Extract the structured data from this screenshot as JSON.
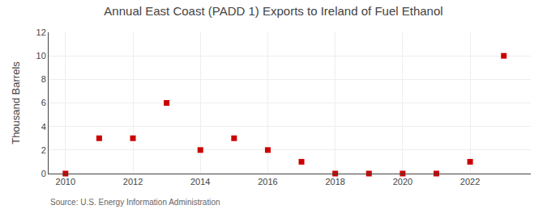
{
  "chart_data": {
    "type": "scatter",
    "title": "Annual East Coast (PADD 1) Exports to Ireland of Fuel Ethanol",
    "ylabel": "Thousand Barrels",
    "annotations": [
      "Source: U.S. Energy Information Administration"
    ],
    "x": [
      2010,
      2011,
      2012,
      2013,
      2014,
      2015,
      2016,
      2017,
      2018,
      2019,
      2020,
      2021,
      2022,
      2023
    ],
    "values": [
      0,
      3,
      3,
      6,
      2,
      3,
      2,
      1,
      0,
      0,
      0,
      0,
      1,
      10
    ],
    "color": "#cc0000",
    "marker": "square",
    "xlim": [
      2009.5,
      2023.8
    ],
    "ylim": [
      0,
      12
    ],
    "xticks": [
      2010,
      2012,
      2014,
      2016,
      2018,
      2020,
      2022
    ],
    "yticks": [
      0,
      2,
      4,
      6,
      8,
      10,
      12
    ],
    "grid": true
  }
}
